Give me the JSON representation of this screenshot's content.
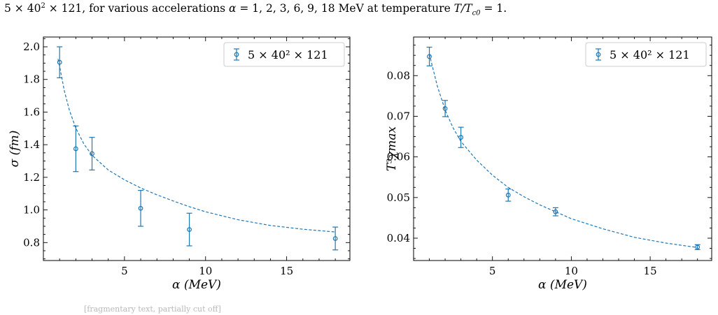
{
  "caption": {
    "prefix": "5 × 40",
    "prefix_sup": "2",
    "prefix_tail": " × 121, for various accelerations ",
    "alpha_sym": "α",
    "values_text": " = 1, 2, 3, 6, 9, 18 MeV at temperature ",
    "temp_sym": "T/T",
    "temp_sub": "c0",
    "suffix": " = 1."
  },
  "footer_text": "[fragmentary text, partially cut off]",
  "colors": {
    "series": "#1f77b4",
    "axes": "#000000",
    "background": "#ffffff"
  },
  "chart_data": [
    {
      "type": "scatter",
      "title": "",
      "xlabel": "α (MeV)",
      "ylabel": "σ (fm)",
      "xlim": [
        0.0,
        18.9
      ],
      "ylim": [
        0.69,
        2.06
      ],
      "xticks": [
        5,
        10,
        15
      ],
      "xtick_labels": [
        "5",
        "10",
        "15"
      ],
      "yticks": [
        0.8,
        1.0,
        1.2,
        1.4,
        1.6,
        1.8,
        2.0
      ],
      "ytick_labels": [
        "0.8",
        "1.0",
        "1.2",
        "1.4",
        "1.6",
        "1.8",
        "2.0"
      ],
      "grid": false,
      "legend_position": "top-right",
      "series": [
        {
          "name": "5 × 40² × 121",
          "x": [
            1,
            2,
            3,
            6,
            9,
            18
          ],
          "y": [
            1.905,
            1.375,
            1.345,
            1.01,
            0.88,
            0.825
          ],
          "yerr": [
            0.095,
            0.14,
            0.1,
            0.11,
            0.1,
            0.07
          ]
        }
      ],
      "fit": {
        "style": "dashed",
        "x": [
          0.9,
          1.0,
          1.3,
          1.6,
          2.0,
          2.5,
          3.0,
          4.0,
          5.0,
          6.0,
          7.0,
          8.0,
          9.0,
          10.0,
          12.0,
          14.0,
          16.0,
          18.0
        ],
        "y": [
          1.925,
          1.88,
          1.727,
          1.612,
          1.502,
          1.404,
          1.335,
          1.245,
          1.185,
          1.135,
          1.093,
          1.055,
          1.02,
          0.989,
          0.94,
          0.905,
          0.882,
          0.865
        ]
      }
    },
    {
      "type": "scatter",
      "title": "",
      "xlabel": "α (MeV)",
      "ylabel": "T³χmax",
      "xlim": [
        0.0,
        18.9
      ],
      "ylim": [
        0.0345,
        0.0895
      ],
      "xticks": [
        5,
        10,
        15
      ],
      "xtick_labels": [
        "5",
        "10",
        "15"
      ],
      "yticks": [
        0.04,
        0.05,
        0.06,
        0.07,
        0.08
      ],
      "ytick_labels": [
        "0.04",
        "0.05",
        "0.06",
        "0.07",
        "0.08"
      ],
      "grid": false,
      "legend_position": "top-right",
      "series": [
        {
          "name": "5 × 40² × 121",
          "x": [
            1,
            2,
            3,
            6,
            9,
            18
          ],
          "y": [
            0.0847,
            0.0719,
            0.0648,
            0.0506,
            0.0465,
            0.0378
          ],
          "yerr": [
            0.0023,
            0.002,
            0.0025,
            0.0015,
            0.001,
            0.0006
          ]
        }
      ],
      "fit": {
        "style": "dashed",
        "x": [
          1.0,
          1.5,
          2.0,
          2.5,
          3.0,
          4.0,
          5.0,
          6.0,
          7.0,
          8.0,
          9.0,
          10.0,
          12.0,
          14.0,
          16.0,
          18.0
        ],
        "y": [
          0.0853,
          0.0775,
          0.0715,
          0.0672,
          0.0638,
          0.0592,
          0.0555,
          0.0525,
          0.0502,
          0.0482,
          0.0465,
          0.0448,
          0.0423,
          0.0402,
          0.0388,
          0.0377
        ]
      }
    }
  ]
}
